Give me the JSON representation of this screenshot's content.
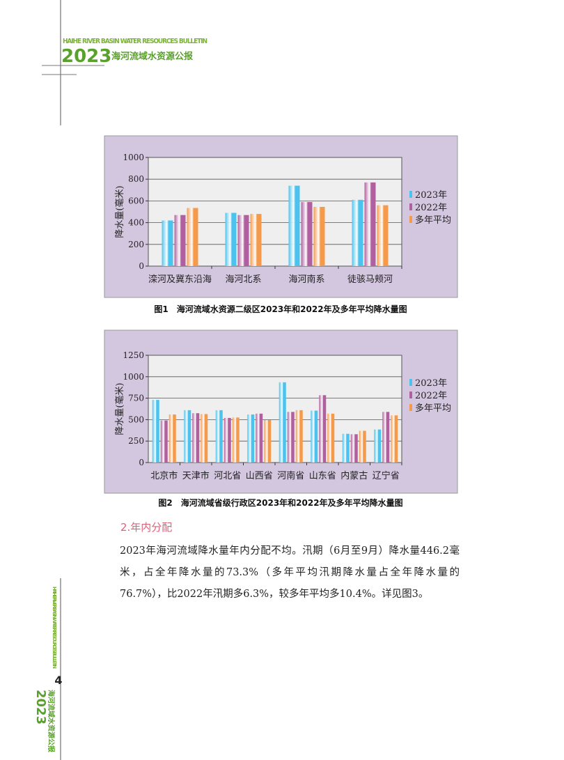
{
  "header": {
    "english": "HAIHE RIVER BASIN WATER RESOURCES BULLETIN",
    "year": "2023",
    "chinese": "海河流域水资源公报"
  },
  "side": {
    "english": "HAIHE RIVER BASIN WATER RESOURCES BULLETIN",
    "page_number": "4",
    "year": "2023",
    "chinese": "海河流域水资源公报"
  },
  "chart_data": [
    {
      "type": "bar",
      "title": "图1　海河流域水资源二级区2023年和2022年及多年平均降水量图",
      "y_label": "降水量(毫米)",
      "categories": [
        "滦河及冀东沿海",
        "海河北系",
        "海河南系",
        "徒骇马颊河"
      ],
      "series": [
        {
          "name": "2023年",
          "color": "#4cc3ee",
          "values": [
            420,
            490,
            740,
            610
          ]
        },
        {
          "name": "2022年",
          "color": "#b0609e",
          "values": [
            470,
            470,
            590,
            770
          ]
        },
        {
          "name": "多年平均",
          "color": "#f59a4a",
          "values": [
            535,
            480,
            545,
            560
          ]
        }
      ],
      "ylim": [
        0,
        1000
      ],
      "yticks": [
        0,
        200,
        400,
        600,
        800,
        1000
      ],
      "grid": true,
      "legend": "right"
    },
    {
      "type": "bar",
      "title": "图2　海河流域省级行政区2023年和2022年及多年平均降水量图",
      "y_label": "降水量(毫米)",
      "categories": [
        "北京市",
        "天津市",
        "河北省",
        "山西省",
        "河南省",
        "山东省",
        "内蒙古",
        "辽宁省"
      ],
      "series": [
        {
          "name": "2023年",
          "color": "#4cc3ee",
          "values": [
            730,
            610,
            610,
            560,
            935,
            605,
            335,
            385
          ]
        },
        {
          "name": "2022年",
          "color": "#b0609e",
          "values": [
            490,
            575,
            520,
            570,
            590,
            785,
            330,
            590
          ]
        },
        {
          "name": "多年平均",
          "color": "#f59a4a",
          "values": [
            560,
            565,
            525,
            495,
            610,
            570,
            370,
            550
          ]
        }
      ],
      "ylim": [
        0,
        1250
      ],
      "yticks": [
        0,
        250,
        500,
        750,
        1000,
        1250
      ],
      "grid": true,
      "legend": "right"
    }
  ],
  "section": {
    "heading": "2.年内分配",
    "paragraph": "2023年海河流域降水量年内分配不均。汛期（6月至9月）降水量446.2毫米，占全年降水量的73.3%（多年平均汛期降水量占全年降水量的76.7%），比2022年汛期多6.3%，较多年平均多10.4%。详见图3。"
  }
}
